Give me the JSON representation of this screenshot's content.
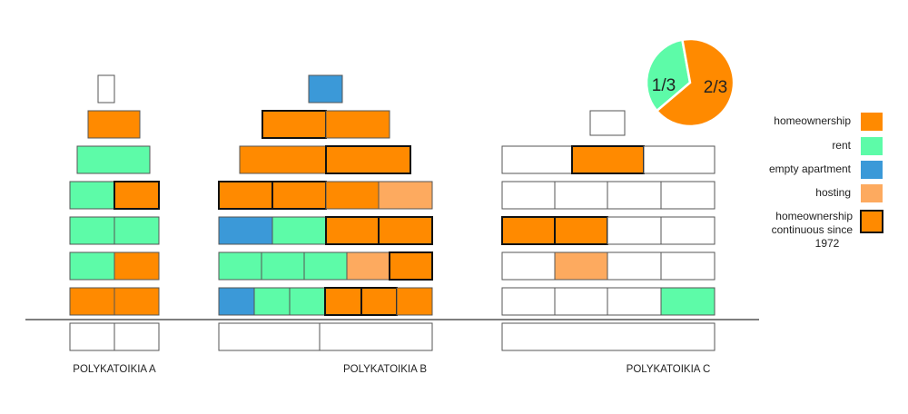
{
  "colors": {
    "homeownership": "#ff8a00",
    "rent": "#5dfba8",
    "empty_apartment": "#3b99d8",
    "hosting": "#fdaa5f",
    "vacant": "#ffffff",
    "outline": "#555555",
    "bold_outline": "#111111",
    "ground": "#333333"
  },
  "buildings": [
    {
      "name": "POLYKATOIKIA A"
    },
    {
      "name": "POLYKATOIKIA B"
    },
    {
      "name": "POLYKATOIKIA C"
    }
  ],
  "pie": {
    "slices": [
      {
        "label": "1/3",
        "fraction": 0.3333,
        "color": "#5dfba8"
      },
      {
        "label": "2/3",
        "fraction": 0.6667,
        "color": "#ff8a00"
      }
    ]
  },
  "legend": [
    {
      "key": "homeownership",
      "label": "homeownership",
      "color": "#ff8a00",
      "bold": false
    },
    {
      "key": "rent",
      "label": "rent",
      "color": "#5dfba8",
      "bold": false
    },
    {
      "key": "empty",
      "label": "empty apartment",
      "color": "#3b99d8",
      "bold": false
    },
    {
      "key": "hosting",
      "label": "hosting",
      "color": "#fdaa5f",
      "bold": false
    },
    {
      "key": "continuous",
      "label_lines": [
        "homeownership",
        "continuous since",
        "1972"
      ],
      "color": "#ff8a00",
      "bold": true
    }
  ]
}
